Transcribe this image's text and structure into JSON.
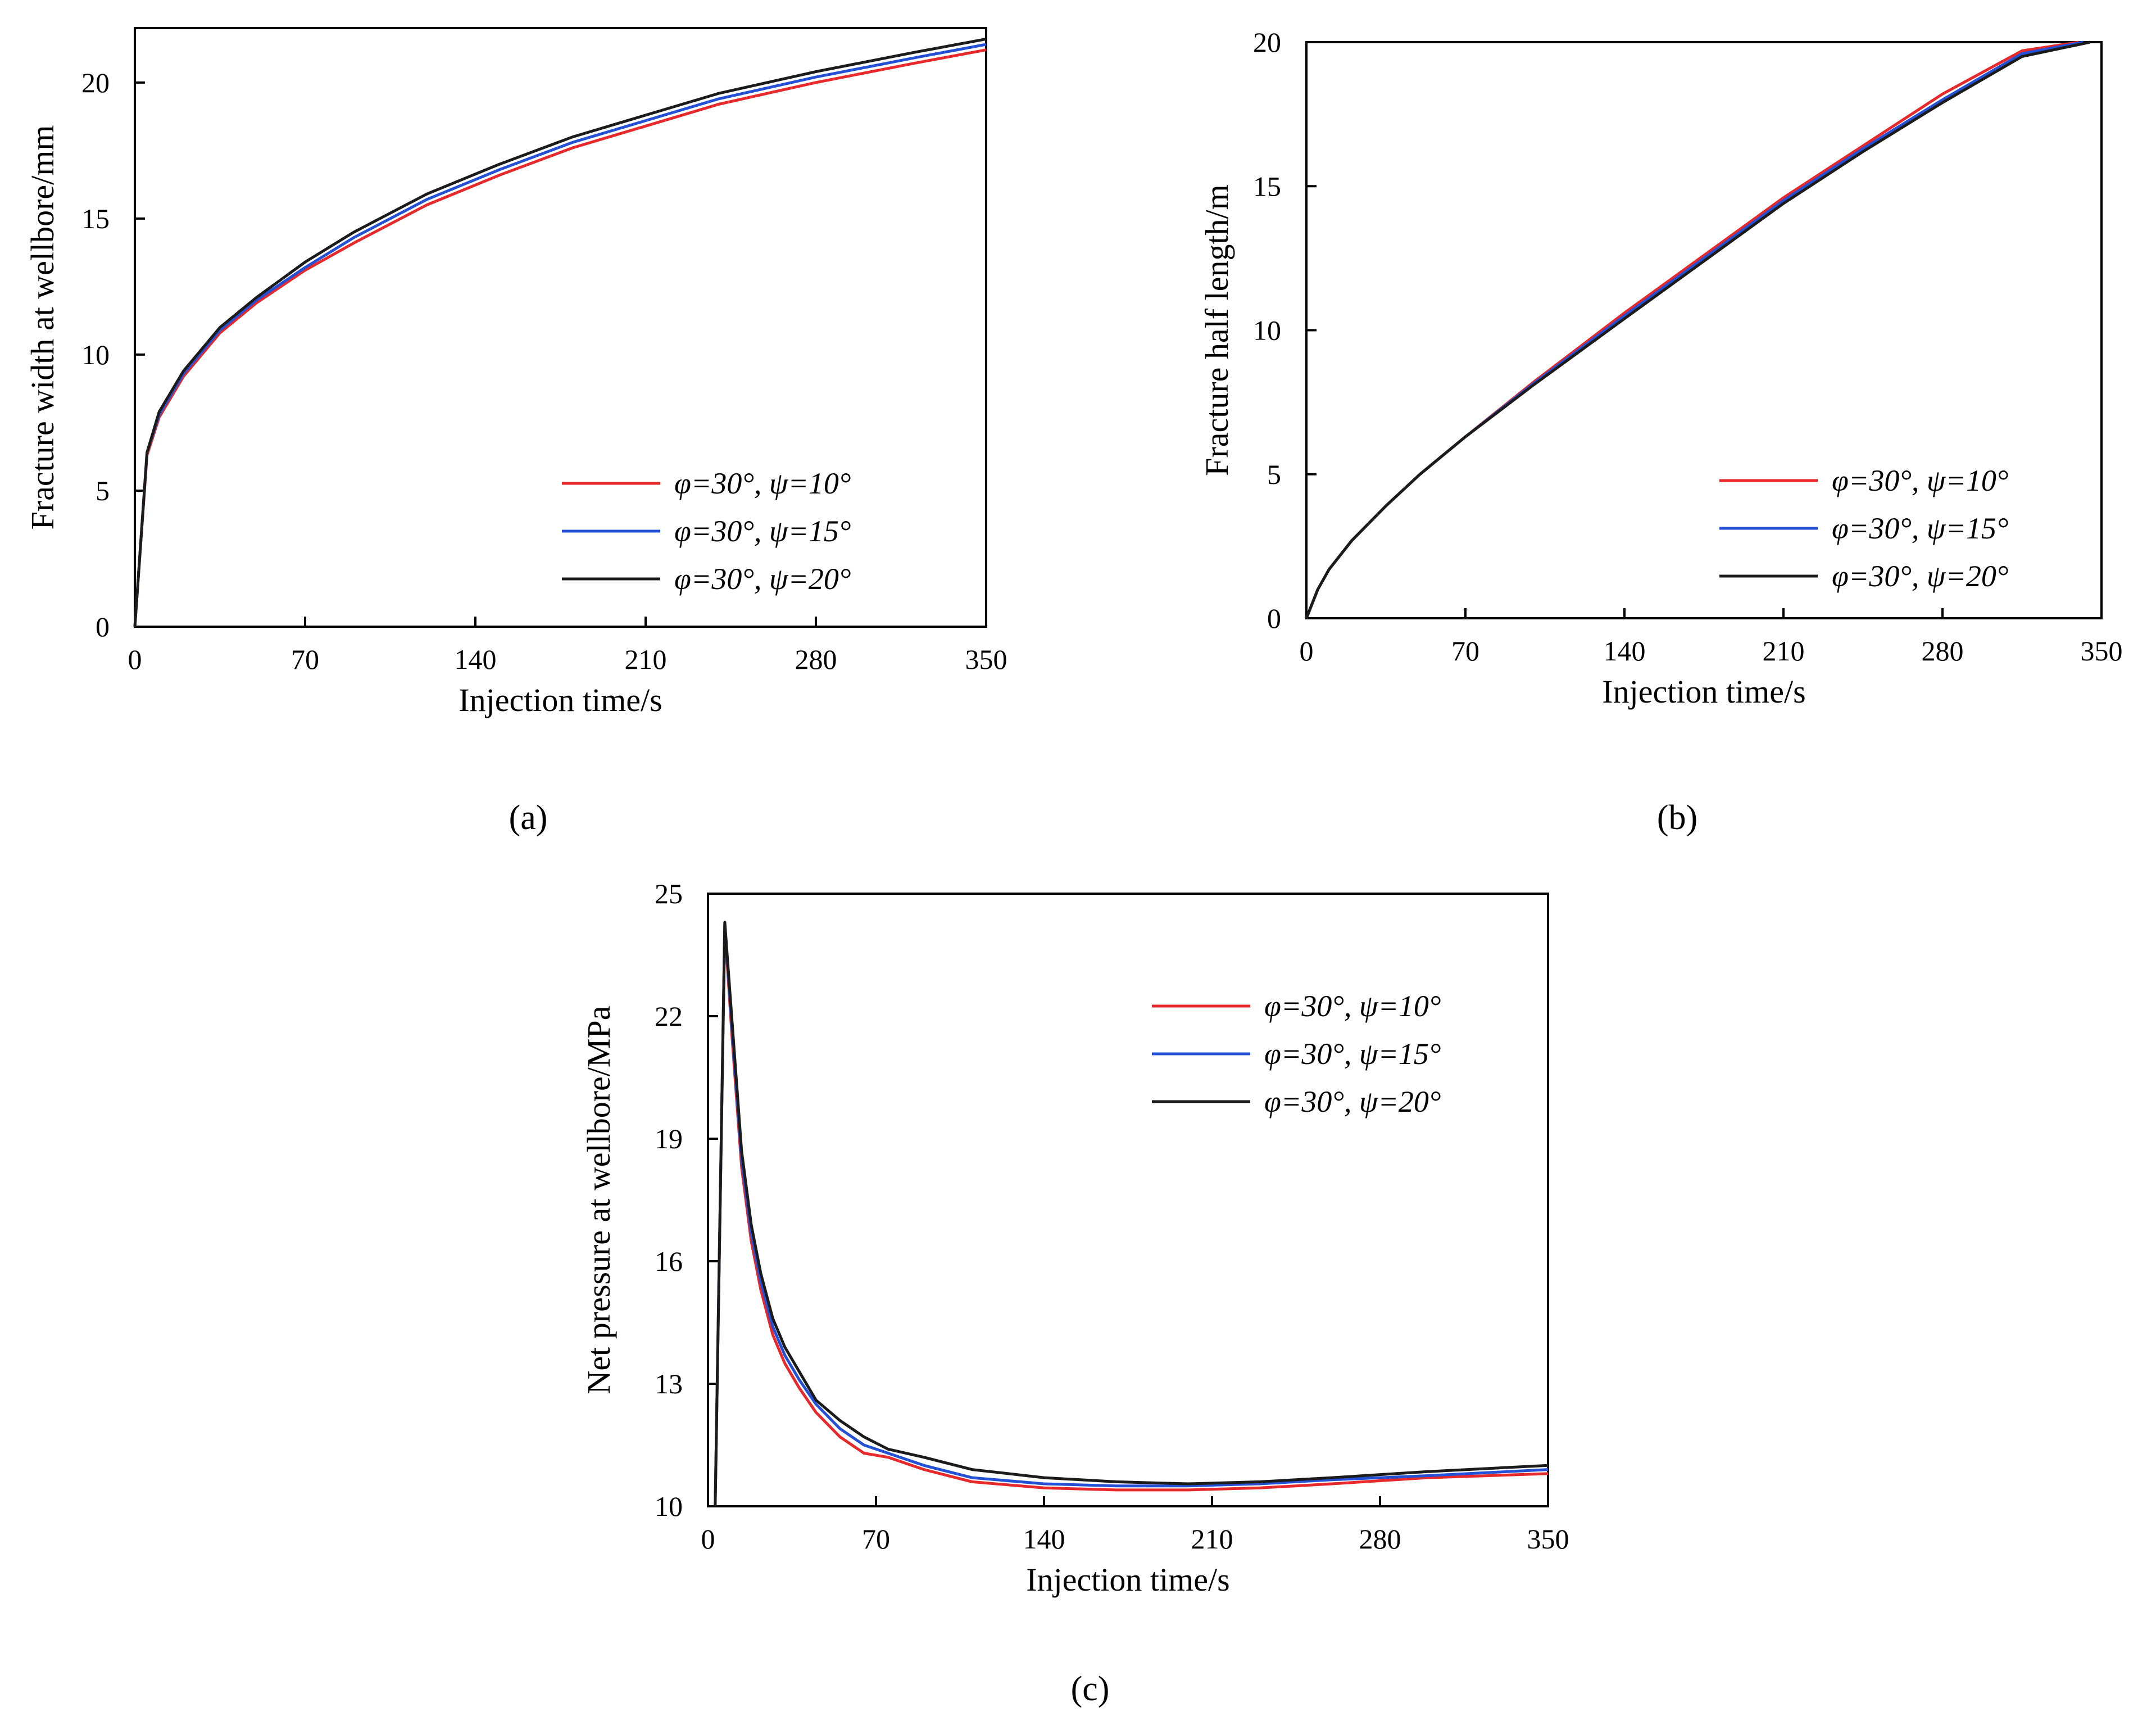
{
  "figure": {
    "captions": [
      "(a)",
      "(b)",
      "(c)"
    ]
  },
  "chart_data": [
    {
      "id": "a",
      "type": "line",
      "xlabel": "Injection time/s",
      "ylabel": "Fracture width at wellbore/mm",
      "xlim": [
        0,
        350
      ],
      "ylim": [
        0,
        22
      ],
      "xticks": [
        0,
        70,
        140,
        210,
        280,
        350
      ],
      "yticks": [
        0,
        5,
        10,
        15,
        20
      ],
      "legend_position": "bottom-right",
      "series": [
        {
          "name": "φ=30°, ψ=10°",
          "color": "#e8292b",
          "x": [
            0,
            5,
            10,
            20,
            35,
            50,
            70,
            90,
            120,
            150,
            180,
            210,
            240,
            280,
            320,
            350
          ],
          "y": [
            0,
            6.3,
            7.7,
            9.2,
            10.8,
            11.9,
            13.1,
            14.1,
            15.5,
            16.6,
            17.6,
            18.4,
            19.2,
            20.0,
            20.7,
            21.2
          ]
        },
        {
          "name": "φ=30°, ψ=15°",
          "color": "#2450d6",
          "x": [
            0,
            5,
            10,
            20,
            35,
            50,
            70,
            90,
            120,
            150,
            180,
            210,
            240,
            280,
            320,
            350
          ],
          "y": [
            0,
            6.4,
            7.8,
            9.3,
            10.9,
            12.0,
            13.2,
            14.3,
            15.7,
            16.8,
            17.8,
            18.6,
            19.4,
            20.2,
            20.9,
            21.4
          ]
        },
        {
          "name": "φ=30°, ψ=20°",
          "color": "#1b1b1b",
          "x": [
            0,
            5,
            10,
            20,
            35,
            50,
            70,
            90,
            120,
            150,
            180,
            210,
            240,
            280,
            320,
            350
          ],
          "y": [
            0,
            6.4,
            7.9,
            9.4,
            11.0,
            12.1,
            13.4,
            14.5,
            15.9,
            17.0,
            18.0,
            18.8,
            19.6,
            20.4,
            21.1,
            21.6
          ]
        }
      ]
    },
    {
      "id": "b",
      "type": "line",
      "xlabel": "Injection time/s",
      "ylabel": "Fracture half length/m",
      "xlim": [
        0,
        350
      ],
      "ylim": [
        0,
        20
      ],
      "xticks": [
        0,
        70,
        140,
        210,
        280,
        350
      ],
      "yticks": [
        0,
        5,
        10,
        15,
        20
      ],
      "legend_position": "bottom-right",
      "series": [
        {
          "name": "φ=30°, ψ=10°",
          "color": "#e8292b",
          "x": [
            0,
            5,
            10,
            20,
            35,
            50,
            70,
            100,
            140,
            175,
            210,
            245,
            280,
            315,
            340
          ],
          "y": [
            0,
            1.0,
            1.7,
            2.7,
            3.9,
            5.0,
            6.3,
            8.2,
            10.6,
            12.6,
            14.6,
            16.4,
            18.2,
            19.7,
            20.0
          ]
        },
        {
          "name": "φ=30°, ψ=15°",
          "color": "#2450d6",
          "x": [
            0,
            5,
            10,
            20,
            35,
            50,
            70,
            100,
            140,
            175,
            210,
            245,
            280,
            315,
            342
          ],
          "y": [
            0,
            1.0,
            1.7,
            2.7,
            3.9,
            5.0,
            6.3,
            8.15,
            10.5,
            12.5,
            14.5,
            16.3,
            18.0,
            19.6,
            20.0
          ]
        },
        {
          "name": "φ=30°, ψ=20°",
          "color": "#1b1b1b",
          "x": [
            0,
            5,
            10,
            20,
            35,
            50,
            70,
            100,
            140,
            175,
            210,
            245,
            280,
            315,
            345
          ],
          "y": [
            0,
            1.0,
            1.7,
            2.7,
            3.9,
            5.0,
            6.3,
            8.1,
            10.4,
            12.4,
            14.4,
            16.2,
            17.9,
            19.5,
            20.0
          ]
        }
      ]
    },
    {
      "id": "c",
      "type": "line",
      "xlabel": "Injection time/s",
      "ylabel": "Net pressure at wellbore/MPa",
      "xlim": [
        0,
        350
      ],
      "ylim": [
        10,
        25
      ],
      "xticks": [
        0,
        70,
        140,
        210,
        280,
        350
      ],
      "yticks": [
        10,
        13,
        16,
        19,
        22,
        25
      ],
      "legend_position": "top-right",
      "series": [
        {
          "name": "φ=30°, ψ=10°",
          "color": "#e8292b",
          "x": [
            3,
            7,
            10,
            14,
            18,
            22,
            27,
            32,
            38,
            45,
            55,
            65,
            75,
            90,
            110,
            140,
            170,
            200,
            230,
            260,
            300,
            350
          ],
          "y": [
            10,
            24.2,
            21.5,
            18.3,
            16.5,
            15.3,
            14.2,
            13.5,
            12.9,
            12.3,
            11.7,
            11.3,
            11.2,
            10.9,
            10.6,
            10.45,
            10.4,
            10.4,
            10.45,
            10.55,
            10.7,
            10.8
          ]
        },
        {
          "name": "φ=30°, ψ=15°",
          "color": "#2450d6",
          "x": [
            3,
            7,
            10,
            14,
            18,
            22,
            27,
            32,
            38,
            45,
            55,
            65,
            75,
            90,
            110,
            140,
            170,
            200,
            230,
            260,
            300,
            350
          ],
          "y": [
            10,
            24.3,
            21.7,
            18.5,
            16.7,
            15.5,
            14.4,
            13.7,
            13.1,
            12.5,
            11.9,
            11.5,
            11.3,
            11.0,
            10.7,
            10.55,
            10.5,
            10.5,
            10.55,
            10.65,
            10.75,
            10.9
          ]
        },
        {
          "name": "φ=30°, ψ=20°",
          "color": "#1b1b1b",
          "x": [
            3,
            7,
            10,
            14,
            18,
            22,
            27,
            32,
            38,
            45,
            55,
            65,
            75,
            90,
            110,
            140,
            170,
            200,
            230,
            260,
            300,
            350
          ],
          "y": [
            10,
            24.3,
            21.9,
            18.7,
            16.9,
            15.7,
            14.6,
            13.9,
            13.3,
            12.6,
            12.1,
            11.7,
            11.4,
            11.2,
            10.9,
            10.7,
            10.6,
            10.55,
            10.6,
            10.7,
            10.85,
            11.0
          ]
        }
      ]
    }
  ]
}
